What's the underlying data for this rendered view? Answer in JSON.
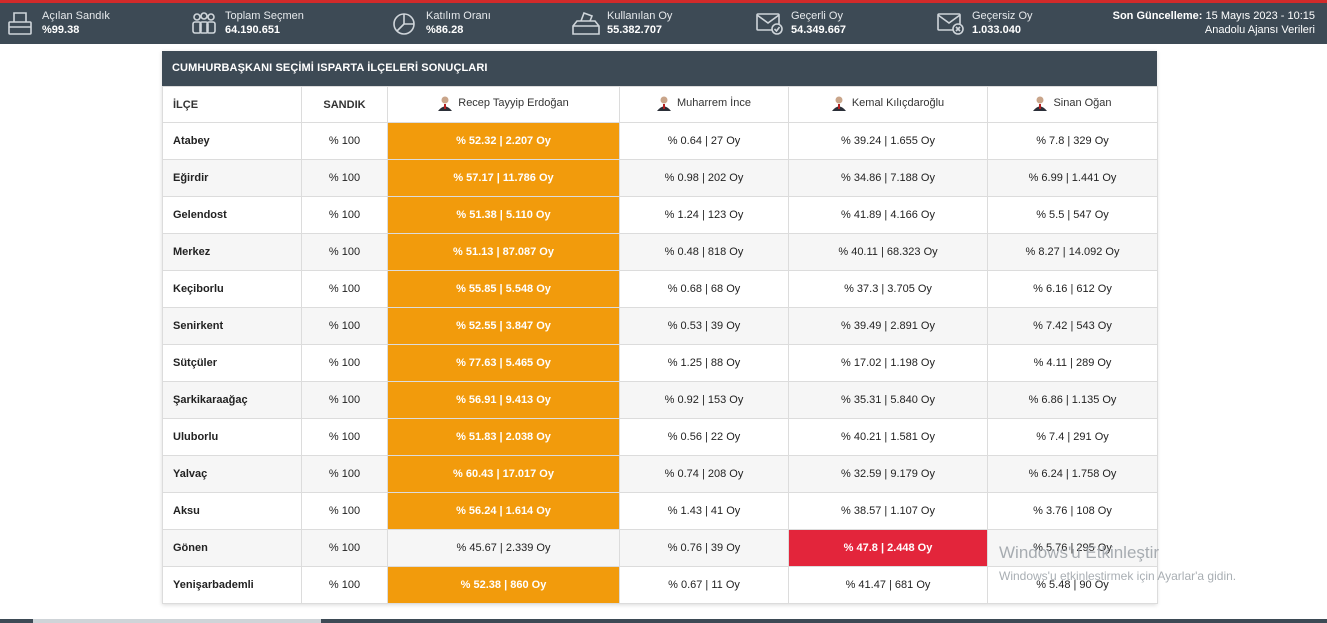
{
  "topbar": {
    "stats": [
      {
        "label": "Açılan Sandık",
        "value": "%99.38",
        "icon": "ballot-box-icon"
      },
      {
        "label": "Toplam Seçmen",
        "value": "64.190.651",
        "icon": "voters-icon"
      },
      {
        "label": "Katılım Oranı",
        "value": "%86.28",
        "icon": "pie-chart-icon"
      },
      {
        "label": "Kullanılan Oy",
        "value": "55.382.707",
        "icon": "ballot-cast-icon"
      },
      {
        "label": "Geçerli Oy",
        "value": "54.349.667",
        "icon": "valid-envelope-icon"
      },
      {
        "label": "Geçersiz Oy",
        "value": "1.033.040",
        "icon": "invalid-envelope-icon"
      }
    ],
    "update_label": "Son Güncelleme:",
    "update_value": "15 Mayıs 2023 - 10:15",
    "source": "Anadolu Ajansı Verileri"
  },
  "panel": {
    "title": "CUMHURBAŞKANI SEÇİMİ ISPARTA İLÇELERİ SONUÇLARI",
    "headers": {
      "district": "İLÇE",
      "sandik": "SANDIK",
      "candidates": [
        "Recep Tayyip Erdoğan",
        "Muharrem İnce",
        "Kemal Kılıçdaroğlu",
        "Sinan Oğan"
      ]
    },
    "rows": [
      {
        "district": "Atabey",
        "sandik": "% 100",
        "c": [
          "% 52.32 | 2.207 Oy",
          "% 0.64 | 27 Oy",
          "% 39.24 | 1.655 Oy",
          "% 7.8 | 329 Oy"
        ],
        "winner": 0
      },
      {
        "district": "Eğirdir",
        "sandik": "% 100",
        "c": [
          "% 57.17 | 11.786 Oy",
          "% 0.98 | 202 Oy",
          "% 34.86 | 7.188 Oy",
          "% 6.99 | 1.441 Oy"
        ],
        "winner": 0
      },
      {
        "district": "Gelendost",
        "sandik": "% 100",
        "c": [
          "% 51.38 | 5.110 Oy",
          "% 1.24 | 123 Oy",
          "% 41.89 | 4.166 Oy",
          "% 5.5 | 547 Oy"
        ],
        "winner": 0
      },
      {
        "district": "Merkez",
        "sandik": "% 100",
        "c": [
          "% 51.13 | 87.087 Oy",
          "% 0.48 | 818 Oy",
          "% 40.11 | 68.323 Oy",
          "% 8.27 | 14.092 Oy"
        ],
        "winner": 0
      },
      {
        "district": "Keçiborlu",
        "sandik": "% 100",
        "c": [
          "% 55.85 | 5.548 Oy",
          "% 0.68 | 68 Oy",
          "% 37.3 | 3.705 Oy",
          "% 6.16 | 612 Oy"
        ],
        "winner": 0
      },
      {
        "district": "Senirkent",
        "sandik": "% 100",
        "c": [
          "% 52.55 | 3.847 Oy",
          "% 0.53 | 39 Oy",
          "% 39.49 | 2.891 Oy",
          "% 7.42 | 543 Oy"
        ],
        "winner": 0
      },
      {
        "district": "Sütçüler",
        "sandik": "% 100",
        "c": [
          "% 77.63 | 5.465 Oy",
          "% 1.25 | 88 Oy",
          "% 17.02 | 1.198 Oy",
          "% 4.11 | 289 Oy"
        ],
        "winner": 0
      },
      {
        "district": "Şarkikaraağaç",
        "sandik": "% 100",
        "c": [
          "% 56.91 | 9.413 Oy",
          "% 0.92 | 153 Oy",
          "% 35.31 | 5.840 Oy",
          "% 6.86 | 1.135 Oy"
        ],
        "winner": 0
      },
      {
        "district": "Uluborlu",
        "sandik": "% 100",
        "c": [
          "% 51.83 | 2.038 Oy",
          "% 0.56 | 22 Oy",
          "% 40.21 | 1.581 Oy",
          "% 7.4 | 291 Oy"
        ],
        "winner": 0
      },
      {
        "district": "Yalvaç",
        "sandik": "% 100",
        "c": [
          "% 60.43 | 17.017 Oy",
          "% 0.74 | 208 Oy",
          "% 32.59 | 9.179 Oy",
          "% 6.24 | 1.758 Oy"
        ],
        "winner": 0
      },
      {
        "district": "Aksu",
        "sandik": "% 100",
        "c": [
          "% 56.24 | 1.614 Oy",
          "% 1.43 | 41 Oy",
          "% 38.57 | 1.107 Oy",
          "% 3.76 | 108 Oy"
        ],
        "winner": 0
      },
      {
        "district": "Gönen",
        "sandik": "% 100",
        "c": [
          "% 45.67 | 2.339 Oy",
          "% 0.76 | 39 Oy",
          "% 47.8 | 2.448 Oy",
          "% 5.76 | 295 Oy"
        ],
        "winner": 2
      },
      {
        "district": "Yenişarbademli",
        "sandik": "% 100",
        "c": [
          "% 52.38 | 860 Oy",
          "% 0.67 | 11 Oy",
          "% 41.47 | 681 Oy",
          "% 5.48 | 90 Oy"
        ],
        "winner": 0
      }
    ],
    "winner_colors": [
      "#f29b0c",
      "#e3253b"
    ]
  },
  "watermark": {
    "line1": "Windows'u Etkinleştir",
    "line2": "Windows'u etkinleştirmek için Ayarlar'a gidin."
  }
}
